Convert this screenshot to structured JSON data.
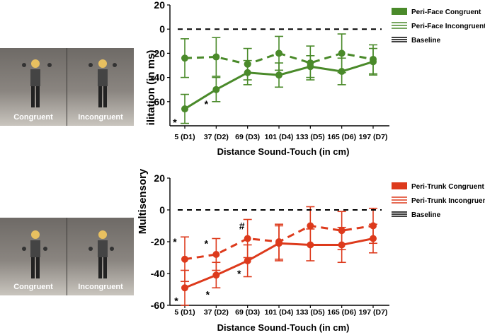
{
  "scenes": {
    "top": {
      "left": "Congruent",
      "right": "Incongruent"
    },
    "bottom": {
      "left": "Congruent",
      "right": "Incongruent"
    }
  },
  "shared_ylabel": "Multisensory facilitation (in ms)",
  "chart_data": [
    {
      "type": "line",
      "id": "face",
      "color": "#4a8a2a",
      "categories": [
        "5 (D1)",
        "37 (D2)",
        "69 (D3)",
        "101 (D4)",
        "133 (D5)",
        "165 (D6)",
        "197 (D7)"
      ],
      "ylim": [
        -80,
        20
      ],
      "yticks": [
        20,
        0,
        -20,
        -40,
        -60
      ],
      "xlabel": "Distance Sound-Touch (in cm)",
      "ylabel_visible": "ilitation (in ms)",
      "series": [
        {
          "name": "Peri-Face Congruent",
          "style": "solid",
          "values": [
            -66,
            -50,
            -36,
            -38,
            -31,
            -35,
            -27
          ],
          "err": [
            12,
            10,
            10,
            10,
            9,
            11,
            11
          ]
        },
        {
          "name": "Peri-Face Incongruent",
          "style": "dashed",
          "values": [
            -24,
            -23,
            -29,
            -20,
            -28,
            -20,
            -25
          ],
          "err": [
            16,
            16,
            13,
            14,
            14,
            16,
            12
          ]
        },
        {
          "name": "Baseline",
          "style": "baseline",
          "values": [
            0,
            0,
            0,
            0,
            0,
            0,
            0
          ]
        }
      ],
      "annotations": [
        {
          "text": "*",
          "cat": 0,
          "value": -77,
          "dx": -14
        },
        {
          "text": "*",
          "cat": 1,
          "value": -62,
          "dx": -14
        }
      ]
    },
    {
      "type": "line",
      "id": "trunk",
      "color": "#dd3a1c",
      "categories": [
        "5 (D1)",
        "37 (D2)",
        "69 (D3)",
        "101 (D4)",
        "133 (D5)",
        "165 (D6)",
        "197 (D7)"
      ],
      "ylim": [
        -60,
        20
      ],
      "yticks": [
        20,
        0,
        -20,
        -40,
        -60
      ],
      "xlabel": "Distance Sound-Touch (in cm)",
      "ylabel_visible": "Multisensory",
      "series": [
        {
          "name": "Peri-Trunk Congruent",
          "style": "solid",
          "values": [
            -49,
            -41,
            -32,
            -21,
            -22,
            -22,
            -18
          ],
          "err": [
            11,
            8,
            10,
            11,
            10,
            11,
            9
          ]
        },
        {
          "name": "Peri-Trunk Incongruent",
          "style": "dashed",
          "values": [
            -31,
            -28,
            -18,
            -20,
            -10,
            -13,
            -10
          ],
          "err": [
            14,
            10,
            12,
            11,
            12,
            12,
            11
          ]
        },
        {
          "name": "Baseline",
          "style": "baseline",
          "values": [
            0,
            0,
            0,
            0,
            0,
            0,
            0
          ]
        }
      ],
      "annotations": [
        {
          "text": "*",
          "cat": 0,
          "value": -20,
          "dx": -14
        },
        {
          "text": "*",
          "cat": 0,
          "value": -57,
          "dx": -12
        },
        {
          "text": "*",
          "cat": 1,
          "value": -21,
          "dx": -14
        },
        {
          "text": "*",
          "cat": 1,
          "value": -53,
          "dx": -12
        },
        {
          "text": "#",
          "cat": 2,
          "value": -10,
          "dx": -8
        },
        {
          "text": "*",
          "cat": 2,
          "value": -40,
          "dx": -12
        }
      ]
    }
  ]
}
